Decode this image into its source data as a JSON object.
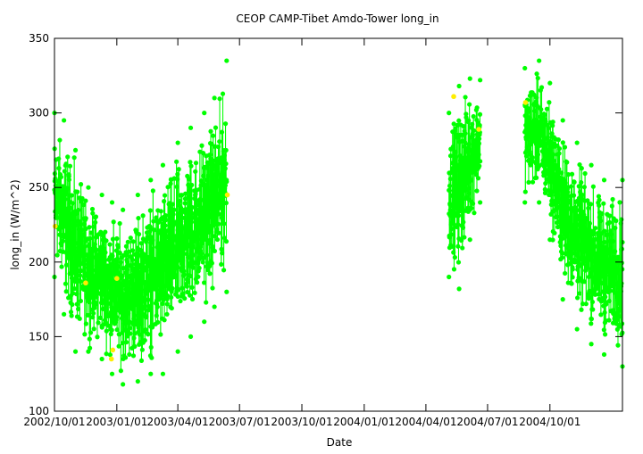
{
  "chart_data": {
    "type": "scatter",
    "title": "CEOP CAMP-Tibet Amdo-Tower  long_in",
    "xlabel": "Date",
    "ylabel": "long_in (W/m^2)",
    "ylim": [
      100,
      350
    ],
    "xlim": [
      "2002-10-01",
      "2005-01-16"
    ],
    "y_ticks": [
      100,
      150,
      200,
      250,
      300,
      350
    ],
    "x_ticks": [
      {
        "date": "2002-10-01",
        "label": "2002/10/01"
      },
      {
        "date": "2003-01-01",
        "label": "2003/01/01"
      },
      {
        "date": "2003-04-01",
        "label": "2003/04/01"
      },
      {
        "date": "2003-07-01",
        "label": "2003/07/01"
      },
      {
        "date": "2003-10-01",
        "label": "2003/10/01"
      },
      {
        "date": "2004-01-01",
        "label": "2004/01/01"
      },
      {
        "date": "2004-04-01",
        "label": "2004/04/01"
      },
      {
        "date": "2004-07-01",
        "label": "2004/07/01"
      },
      {
        "date": "2004-10-01",
        "label": "2004/10/01"
      }
    ],
    "grid": false,
    "series": [
      {
        "color": "#00ff00",
        "marker": "circle",
        "segments": [
          {
            "start": "2002-10-01",
            "end": "2003-06-12",
            "envelope": [
              {
                "date": "2002-10-01",
                "min": 190,
                "max": 300
              },
              {
                "date": "2002-10-15",
                "min": 165,
                "max": 295
              },
              {
                "date": "2002-11-01",
                "min": 140,
                "max": 275
              },
              {
                "date": "2002-11-20",
                "min": 140,
                "max": 250
              },
              {
                "date": "2002-12-10",
                "min": 135,
                "max": 245
              },
              {
                "date": "2002-12-25",
                "min": 125,
                "max": 240
              },
              {
                "date": "2003-01-10",
                "min": 118,
                "max": 235
              },
              {
                "date": "2003-02-01",
                "min": 120,
                "max": 245
              },
              {
                "date": "2003-02-20",
                "min": 125,
                "max": 255
              },
              {
                "date": "2003-03-10",
                "min": 125,
                "max": 265
              },
              {
                "date": "2003-04-01",
                "min": 140,
                "max": 280
              },
              {
                "date": "2003-04-20",
                "min": 150,
                "max": 290
              },
              {
                "date": "2003-05-10",
                "min": 160,
                "max": 300
              },
              {
                "date": "2003-05-25",
                "min": 170,
                "max": 310
              },
              {
                "date": "2003-06-12",
                "min": 180,
                "max": 335
              }
            ]
          },
          {
            "start": "2004-05-05",
            "end": "2004-06-20",
            "envelope": [
              {
                "date": "2004-05-05",
                "min": 190,
                "max": 300
              },
              {
                "date": "2004-05-20",
                "min": 182,
                "max": 318
              },
              {
                "date": "2004-06-05",
                "min": 215,
                "max": 323
              },
              {
                "date": "2004-06-20",
                "min": 240,
                "max": 322
              }
            ]
          },
          {
            "start": "2004-08-25",
            "end": "2005-01-16",
            "envelope": [
              {
                "date": "2004-08-25",
                "min": 240,
                "max": 330
              },
              {
                "date": "2004-09-15",
                "min": 240,
                "max": 335
              },
              {
                "date": "2004-10-01",
                "min": 215,
                "max": 320
              },
              {
                "date": "2004-10-20",
                "min": 175,
                "max": 295
              },
              {
                "date": "2004-11-10",
                "min": 155,
                "max": 280
              },
              {
                "date": "2004-12-01",
                "min": 145,
                "max": 265
              },
              {
                "date": "2004-12-20",
                "min": 138,
                "max": 255
              },
              {
                "date": "2005-01-16",
                "min": 130,
                "max": 255
              }
            ]
          }
        ]
      },
      {
        "color": "#ffee00",
        "marker": "circle",
        "points": [
          {
            "date": "2002-10-02",
            "y": 224
          },
          {
            "date": "2002-11-16",
            "y": 186
          },
          {
            "date": "2002-12-26",
            "y": 141
          },
          {
            "date": "2002-12-24",
            "y": 135
          },
          {
            "date": "2003-01-01",
            "y": 189
          },
          {
            "date": "2003-06-13",
            "y": 245
          },
          {
            "date": "2004-05-12",
            "y": 311
          },
          {
            "date": "2004-06-18",
            "y": 289
          },
          {
            "date": "2004-08-26",
            "y": 307
          }
        ]
      }
    ]
  }
}
